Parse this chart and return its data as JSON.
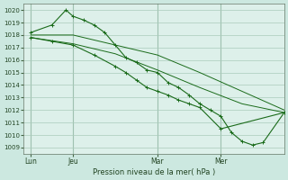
{
  "background_color": "#cce8e0",
  "plot_bg": "#ddf0ea",
  "grid_color": "#aaccbb",
  "line_color": "#1a6b1a",
  "marker_color": "#1a6b1a",
  "xlabel": "Pression niveau de la mer( hPa )",
  "ylim_min": 1008.5,
  "ylim_max": 1020.5,
  "yticks": [
    1009,
    1010,
    1011,
    1012,
    1013,
    1014,
    1015,
    1016,
    1017,
    1018,
    1019,
    1020
  ],
  "xtick_labels": [
    "Lun",
    "Jeu",
    "Mar",
    "Mer"
  ],
  "xtick_positions": [
    0,
    24,
    72,
    108
  ],
  "xlim_min": -4,
  "xlim_max": 144,
  "vlines": [
    0,
    24,
    72,
    108
  ],
  "series1": {
    "x": [
      0,
      24,
      48,
      72,
      96,
      120,
      144
    ],
    "y": [
      1018.0,
      1018.0,
      1017.2,
      1016.4,
      1015.0,
      1013.5,
      1012.0
    ]
  },
  "series2": {
    "x": [
      0,
      24,
      48,
      72,
      96,
      120,
      144
    ],
    "y": [
      1017.8,
      1017.3,
      1016.5,
      1015.2,
      1013.8,
      1012.5,
      1011.8
    ]
  },
  "series3": {
    "x": [
      0,
      12,
      20,
      24,
      30,
      36,
      42,
      48,
      54,
      60,
      66,
      72,
      78,
      84,
      90,
      96,
      102,
      108,
      114,
      120,
      126,
      132,
      144
    ],
    "y": [
      1018.2,
      1018.8,
      1020.0,
      1019.5,
      1019.2,
      1018.8,
      1018.2,
      1017.2,
      1016.2,
      1015.8,
      1015.2,
      1015.0,
      1014.2,
      1013.8,
      1013.2,
      1012.5,
      1012.0,
      1011.5,
      1010.2,
      1009.5,
      1009.2,
      1009.4,
      1011.8
    ]
  },
  "series4": {
    "x": [
      0,
      12,
      24,
      36,
      48,
      54,
      60,
      66,
      72,
      78,
      84,
      90,
      96,
      108,
      144
    ],
    "y": [
      1017.8,
      1017.5,
      1017.2,
      1016.4,
      1015.5,
      1015.0,
      1014.4,
      1013.8,
      1013.5,
      1013.2,
      1012.8,
      1012.5,
      1012.2,
      1010.5,
      1011.8
    ]
  }
}
